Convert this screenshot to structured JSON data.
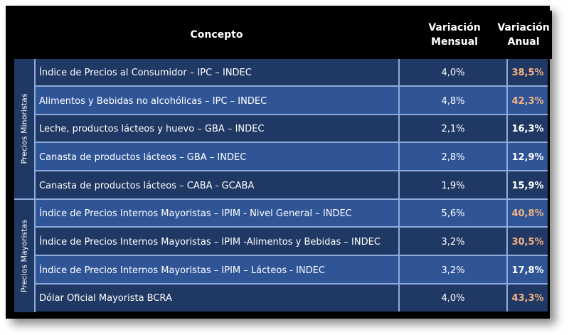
{
  "header": {
    "concept": "Concepto",
    "monthly_line1": "Variación",
    "monthly_line2": "Mensual",
    "annual_line1": "Variación",
    "annual_line2": "Anual"
  },
  "groups": [
    {
      "label": "Precios Minoristas"
    },
    {
      "label": "Precios Mayoristas"
    }
  ],
  "rows": [
    {
      "concept": "Índice de Precios al Consumidor – IPC – INDEC",
      "monthly": "4,0%",
      "annual": "38,5%",
      "highlight": true
    },
    {
      "concept": "Alimentos y Bebidas no alcohólicas – IPC – INDEC",
      "monthly": "4,8%",
      "annual": "42,3%",
      "highlight": true
    },
    {
      "concept": "Leche, productos lácteos y huevo – GBA – INDEC",
      "monthly": "2,1%",
      "annual": "16,3%",
      "highlight": false
    },
    {
      "concept": "Canasta de productos lácteos – GBA – INDEC",
      "monthly": "2,8%",
      "annual": "12,9%",
      "highlight": false
    },
    {
      "concept": "Canasta de productos lácteos – CABA - GCABA",
      "monthly": "1,9%",
      "annual": "15,9%",
      "highlight": false
    },
    {
      "concept": "Índice de Precios Internos Mayoristas – IPIM - Nivel General – INDEC",
      "monthly": "5,6%",
      "annual": "40,8%",
      "highlight": true
    },
    {
      "concept": "Índice de Precios Internos Mayoristas – IPIM -Alimentos y Bebidas – INDEC",
      "monthly": "3,2%",
      "annual": "30,5%",
      "highlight": true
    },
    {
      "concept": "Índice de Precios Internos Mayoristas – IPIM – Lácteos - INDEC",
      "monthly": "3,2%",
      "annual": "17,8%",
      "highlight": false
    },
    {
      "concept": "Dólar Oficial Mayorista BCRA",
      "monthly": "4,0%",
      "annual": "43,3%",
      "highlight": true
    }
  ],
  "colors": {
    "header_bg": "#000000",
    "row_dark": "#203864",
    "row_light": "#2f5597",
    "separator": "#8eaadb",
    "highlight": "#f4b183"
  }
}
